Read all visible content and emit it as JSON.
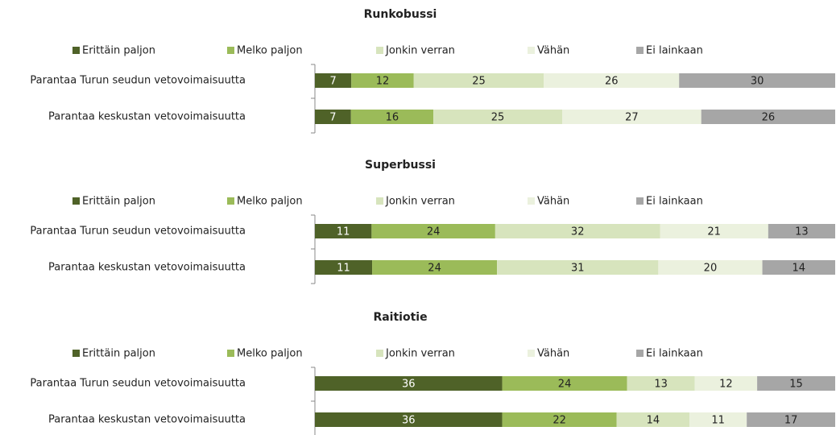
{
  "chart_data": [
    {
      "type": "stacked-bar-100",
      "title": "Runkobussi",
      "categories": [
        "Parantaa Turun seudun vetovoimaisuutta",
        "Parantaa keskustan vetovoimaisuutta"
      ],
      "series": [
        {
          "name": "Erittäin paljon",
          "color": "#4f6228",
          "values": [
            7,
            7
          ]
        },
        {
          "name": "Melko paljon",
          "color": "#9bbb59",
          "values": [
            12,
            16
          ]
        },
        {
          "name": "Jonkin verran",
          "color": "#d7e4bd",
          "values": [
            25,
            25
          ]
        },
        {
          "name": "Vähän",
          "color": "#ebf1de",
          "values": [
            26,
            27
          ]
        },
        {
          "name": "Ei lainkaan",
          "color": "#a6a6a6",
          "values": [
            30,
            26
          ]
        }
      ]
    },
    {
      "type": "stacked-bar-100",
      "title": "Superbussi",
      "categories": [
        "Parantaa Turun seudun vetovoimaisuutta",
        "Parantaa keskustan vetovoimaisuutta"
      ],
      "series": [
        {
          "name": "Erittäin paljon",
          "color": "#4f6228",
          "values": [
            11,
            11
          ]
        },
        {
          "name": "Melko paljon",
          "color": "#9bbb59",
          "values": [
            24,
            24
          ]
        },
        {
          "name": "Jonkin verran",
          "color": "#d7e4bd",
          "values": [
            32,
            31
          ]
        },
        {
          "name": "Vähän",
          "color": "#ebf1de",
          "values": [
            21,
            20
          ]
        },
        {
          "name": "Ei lainkaan",
          "color": "#a6a6a6",
          "values": [
            13,
            14
          ]
        }
      ]
    },
    {
      "type": "stacked-bar-100",
      "title": "Raitiotie",
      "categories": [
        "Parantaa Turun seudun vetovoimaisuutta",
        "Parantaa keskustan vetovoimaisuutta"
      ],
      "series": [
        {
          "name": "Erittäin paljon",
          "color": "#4f6228",
          "values": [
            36,
            36
          ]
        },
        {
          "name": "Melko paljon",
          "color": "#9bbb59",
          "values": [
            24,
            22
          ]
        },
        {
          "name": "Jonkin verran",
          "color": "#d7e4bd",
          "values": [
            13,
            14
          ]
        },
        {
          "name": "Vähän",
          "color": "#ebf1de",
          "values": [
            12,
            11
          ]
        },
        {
          "name": "Ei lainkaan",
          "color": "#a6a6a6",
          "values": [
            15,
            17
          ]
        }
      ]
    }
  ]
}
